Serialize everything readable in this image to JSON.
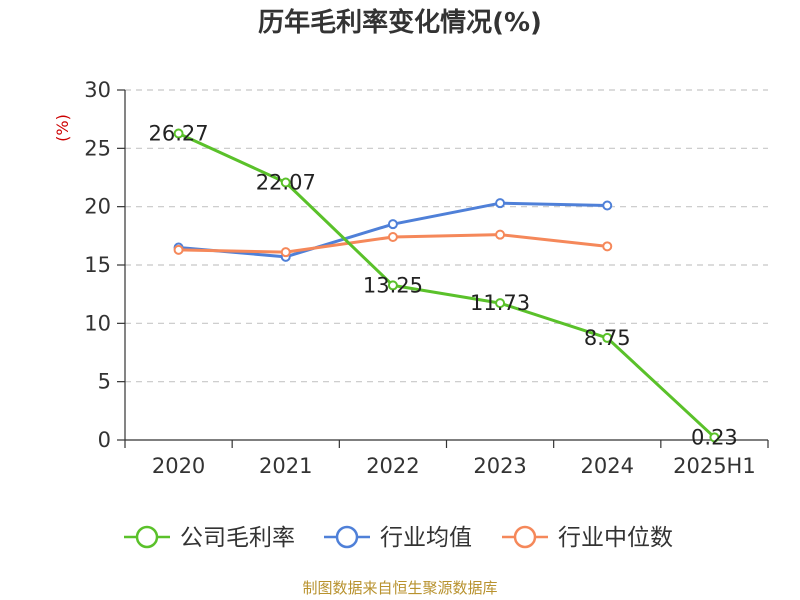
{
  "chart_data": {
    "type": "line",
    "title": "历年毛利率变化情况(%)",
    "ylabel": "(%)",
    "categories": [
      "2020",
      "2021",
      "2022",
      "2023",
      "2024",
      "2025H1"
    ],
    "ylim": [
      0,
      30
    ],
    "yticks": [
      0,
      5,
      10,
      15,
      20,
      25,
      30
    ],
    "grid": true,
    "legend_position": "bottom",
    "series": [
      {
        "name": "公司毛利率",
        "color": "#5ac12a",
        "values": [
          26.27,
          22.07,
          13.25,
          11.73,
          8.75,
          0.23
        ],
        "labels": [
          "26.27",
          "22.07",
          "13.25",
          "11.73",
          "8.75",
          "0.23"
        ]
      },
      {
        "name": "行业均值",
        "color": "#4f80d8",
        "values": [
          16.5,
          15.7,
          18.5,
          20.3,
          20.1,
          null
        ]
      },
      {
        "name": "行业中位数",
        "color": "#f5885a",
        "values": [
          16.3,
          16.1,
          17.4,
          17.6,
          16.6,
          null
        ]
      }
    ]
  },
  "source_note": "制图数据来自恒生聚源数据库"
}
